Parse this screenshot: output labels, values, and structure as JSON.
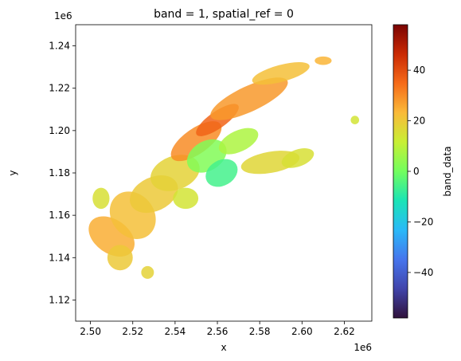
{
  "chart_data": {
    "type": "heatmap",
    "title": "band = 1, spatial_ref = 0",
    "xlabel": "x",
    "ylabel": "y",
    "x_offset_label": "1e6",
    "y_offset_label": "1e6",
    "xlim": [
      2.493,
      2.633
    ],
    "ylim": [
      1.11,
      1.25
    ],
    "x_ticks": [
      2.5,
      2.52,
      2.54,
      2.56,
      2.58,
      2.6,
      2.62
    ],
    "x_tick_labels": [
      "2.50",
      "2.52",
      "2.54",
      "2.56",
      "2.58",
      "2.60",
      "2.62"
    ],
    "y_ticks": [
      1.12,
      1.14,
      1.16,
      1.18,
      1.2,
      1.22,
      1.24
    ],
    "y_tick_labels": [
      "1.12",
      "1.14",
      "1.16",
      "1.18",
      "1.20",
      "1.22",
      "1.24"
    ],
    "grid": false,
    "colorbar": {
      "label": "band_data",
      "colormap": "turbo",
      "range": [
        -58,
        58
      ],
      "ticks": [
        -40,
        -20,
        0,
        20,
        40
      ],
      "tick_labels": [
        "−40",
        "−20",
        "0",
        "20",
        "40"
      ]
    },
    "regions": [
      {
        "x": 2.51,
        "y": 1.15,
        "rx": 0.008,
        "ry": 0.012,
        "angle": 55,
        "value": 25
      },
      {
        "x": 2.514,
        "y": 1.14,
        "rx": 0.006,
        "ry": 0.006,
        "angle": 0,
        "value": 20
      },
      {
        "x": 2.52,
        "y": 1.16,
        "rx": 0.01,
        "ry": 0.012,
        "angle": 40,
        "value": 22
      },
      {
        "x": 2.505,
        "y": 1.168,
        "rx": 0.004,
        "ry": 0.005,
        "angle": 0,
        "value": 15
      },
      {
        "x": 2.53,
        "y": 1.17,
        "rx": 0.012,
        "ry": 0.008,
        "angle": 25,
        "value": 20
      },
      {
        "x": 2.54,
        "y": 1.18,
        "rx": 0.012,
        "ry": 0.008,
        "angle": 20,
        "value": 18
      },
      {
        "x": 2.545,
        "y": 1.168,
        "rx": 0.006,
        "ry": 0.005,
        "angle": 0,
        "value": 14
      },
      {
        "x": 2.55,
        "y": 1.195,
        "rx": 0.014,
        "ry": 0.006,
        "angle": 35,
        "value": 30
      },
      {
        "x": 2.56,
        "y": 1.205,
        "rx": 0.012,
        "ry": 0.004,
        "angle": 35,
        "value": 36
      },
      {
        "x": 2.555,
        "y": 1.188,
        "rx": 0.01,
        "ry": 0.007,
        "angle": 30,
        "value": 2
      },
      {
        "x": 2.562,
        "y": 1.18,
        "rx": 0.008,
        "ry": 0.006,
        "angle": 30,
        "value": -6
      },
      {
        "x": 2.575,
        "y": 1.215,
        "rx": 0.02,
        "ry": 0.006,
        "angle": 25,
        "value": 28
      },
      {
        "x": 2.59,
        "y": 1.227,
        "rx": 0.014,
        "ry": 0.004,
        "angle": 15,
        "value": 22
      },
      {
        "x": 2.585,
        "y": 1.185,
        "rx": 0.014,
        "ry": 0.005,
        "angle": 10,
        "value": 17
      },
      {
        "x": 2.598,
        "y": 1.187,
        "rx": 0.008,
        "ry": 0.004,
        "angle": 20,
        "value": 15
      },
      {
        "x": 2.57,
        "y": 1.195,
        "rx": 0.01,
        "ry": 0.005,
        "angle": 25,
        "value": 8
      },
      {
        "x": 2.527,
        "y": 1.133,
        "rx": 0.003,
        "ry": 0.003,
        "angle": 0,
        "value": 18
      },
      {
        "x": 2.61,
        "y": 1.233,
        "rx": 0.004,
        "ry": 0.002,
        "angle": 0,
        "value": 24
      },
      {
        "x": 2.625,
        "y": 1.205,
        "rx": 0.002,
        "ry": 0.002,
        "angle": 0,
        "value": 14
      }
    ]
  }
}
